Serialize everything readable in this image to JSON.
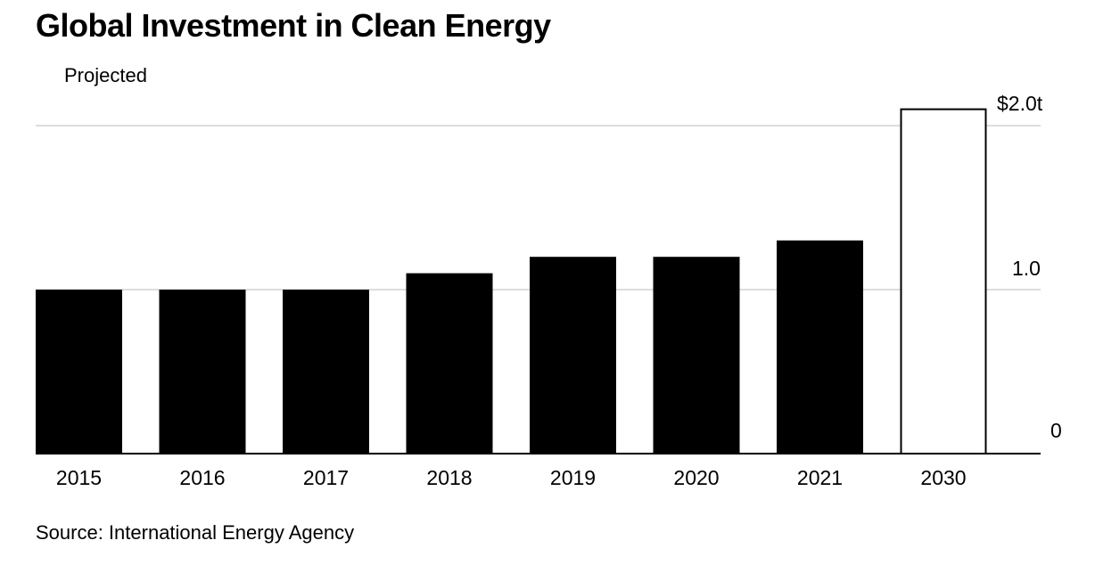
{
  "title": "Global Investment in Clean Energy",
  "source": "Source: International Energy Agency",
  "chart_data": {
    "type": "bar",
    "title": "Global Investment in Clean Energy",
    "categories": [
      "2015",
      "2016",
      "2017",
      "2018",
      "2019",
      "2020",
      "2021",
      "2030"
    ],
    "values": [
      1.0,
      1.0,
      1.0,
      1.1,
      1.2,
      1.2,
      1.3,
      2.1
    ],
    "projected_flags": [
      false,
      false,
      false,
      false,
      false,
      false,
      false,
      true
    ],
    "legend": [
      {
        "label": "Projected",
        "style": "outlined",
        "applies_to": "2030"
      }
    ],
    "ylim": [
      0,
      2.0
    ],
    "yticks": [
      0,
      1.0,
      2.0
    ],
    "ytick_labels": [
      "0",
      "1.0",
      "$2.0t"
    ],
    "xlabel": "",
    "ylabel": "",
    "grid": true,
    "y_axis_position": "right",
    "colors": {
      "actual": "#000000",
      "projected_fill": "#ffffff",
      "projected_stroke": "#000000",
      "grid": "#dddddd",
      "baseline": "#000000"
    }
  }
}
